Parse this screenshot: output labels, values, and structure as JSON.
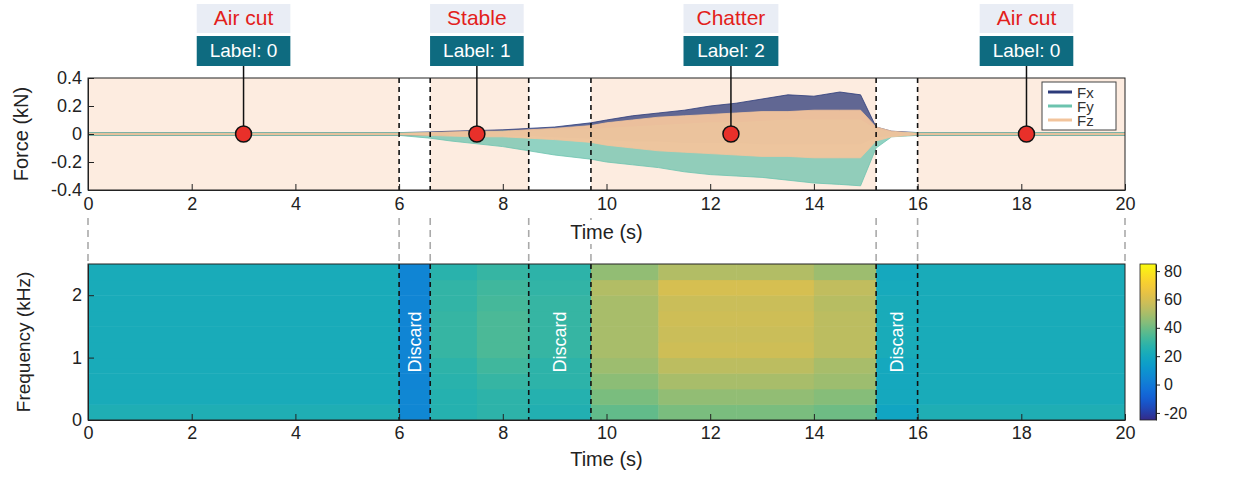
{
  "chart_data": [
    {
      "type": "area",
      "x": [
        0,
        6,
        6.6,
        7,
        7.5,
        8,
        8.5,
        9,
        9.7,
        10,
        10.5,
        11,
        11.5,
        12,
        12.5,
        13,
        13.5,
        14,
        14.5,
        14.9,
        15.2,
        15.5,
        16,
        20
      ],
      "series": [
        {
          "name": "Fx",
          "color": "#2c3b7a",
          "upper": [
            0.01,
            0.01,
            0.015,
            0.02,
            0.025,
            0.03,
            0.04,
            0.05,
            0.08,
            0.1,
            0.13,
            0.15,
            0.17,
            0.2,
            0.22,
            0.25,
            0.28,
            0.27,
            0.3,
            0.28,
            0.05,
            0.02,
            0.01,
            0.01
          ],
          "lower": [
            -0.01,
            -0.01,
            -0.01,
            -0.01,
            -0.01,
            -0.01,
            -0.01,
            -0.02,
            -0.03,
            -0.04,
            -0.05,
            -0.05,
            -0.06,
            -0.06,
            -0.06,
            -0.07,
            -0.07,
            -0.07,
            -0.07,
            -0.07,
            -0.02,
            -0.01,
            -0.01,
            -0.01
          ]
        },
        {
          "name": "Fy",
          "color": "#6cc3ae",
          "upper": [
            0.01,
            0.01,
            0.01,
            0.01,
            0.01,
            0.02,
            0.02,
            0.03,
            0.03,
            0.04,
            0.05,
            0.06,
            0.07,
            0.08,
            0.08,
            0.09,
            0.1,
            0.1,
            0.1,
            0.1,
            0.03,
            0.01,
            0.01,
            0.01
          ],
          "lower": [
            -0.01,
            -0.01,
            -0.03,
            -0.05,
            -0.07,
            -0.09,
            -0.12,
            -0.15,
            -0.18,
            -0.2,
            -0.22,
            -0.24,
            -0.27,
            -0.29,
            -0.3,
            -0.31,
            -0.33,
            -0.35,
            -0.36,
            -0.37,
            -0.1,
            -0.02,
            -0.01,
            -0.01
          ]
        },
        {
          "name": "Fz",
          "color": "#f2c49c",
          "upper": [
            0.005,
            0.005,
            0.01,
            0.015,
            0.02,
            0.02,
            0.03,
            0.04,
            0.06,
            0.08,
            0.1,
            0.12,
            0.13,
            0.14,
            0.15,
            0.16,
            0.16,
            0.17,
            0.17,
            0.17,
            0.05,
            0.02,
            0.005,
            0.005
          ],
          "lower": [
            -0.005,
            -0.005,
            -0.01,
            -0.015,
            -0.02,
            -0.02,
            -0.03,
            -0.04,
            -0.06,
            -0.08,
            -0.1,
            -0.12,
            -0.13,
            -0.14,
            -0.15,
            -0.16,
            -0.16,
            -0.17,
            -0.17,
            -0.17,
            -0.05,
            -0.02,
            -0.005,
            -0.005
          ]
        }
      ],
      "xlabel": "Time (s)",
      "ylabel": "Force (kN)",
      "xlim": [
        0,
        20
      ],
      "ylim": [
        -0.4,
        0.4
      ],
      "xticks": [
        0,
        2,
        4,
        6,
        8,
        10,
        12,
        14,
        16,
        18,
        20
      ],
      "yticks": [
        -0.4,
        -0.2,
        0,
        0.2,
        0.4
      ],
      "legend": "upper right",
      "regions": [
        {
          "start": 0,
          "end": 6
        },
        {
          "start": 6.6,
          "end": 8.5
        },
        {
          "start": 9.7,
          "end": 15.2
        },
        {
          "start": 16,
          "end": 20
        }
      ],
      "boundaries": [
        6,
        6.6,
        8.5,
        9.7,
        15.2,
        16
      ],
      "annotations": [
        {
          "x": 3,
          "y": 0,
          "title": "Air cut",
          "label": "Label: 0"
        },
        {
          "x": 7.5,
          "y": 0,
          "title": "Stable",
          "label": "Label: 1"
        },
        {
          "x": 12.4,
          "y": 0,
          "title": "Chatter",
          "label": "Label: 2"
        },
        {
          "x": 18.1,
          "y": 0,
          "title": "Air cut",
          "label": "Label: 0"
        }
      ]
    },
    {
      "type": "heatmap",
      "x_edges": [
        0,
        6,
        6.6,
        7.5,
        8.5,
        9.7,
        11,
        12.5,
        14,
        15.2,
        16,
        20
      ],
      "y_edges": [
        0,
        0.25,
        0.5,
        0.75,
        1,
        1.25,
        1.5,
        1.75,
        2,
        2.25,
        2.5
      ],
      "cells": [
        [
          24,
          5,
          26,
          28,
          25,
          38,
          42,
          42,
          40,
          18,
          24
        ],
        [
          22,
          5,
          26,
          28,
          26,
          42,
          46,
          46,
          44,
          20,
          22
        ],
        [
          22,
          4,
          27,
          30,
          28,
          45,
          50,
          50,
          48,
          20,
          22
        ],
        [
          22,
          4,
          28,
          32,
          28,
          48,
          54,
          54,
          50,
          20,
          22
        ],
        [
          22,
          4,
          30,
          34,
          30,
          50,
          58,
          58,
          54,
          22,
          22
        ],
        [
          22,
          4,
          30,
          34,
          30,
          50,
          57,
          57,
          54,
          22,
          22
        ],
        [
          22,
          4,
          30,
          34,
          30,
          50,
          58,
          58,
          54,
          22,
          22
        ],
        [
          22,
          4,
          29,
          33,
          30,
          50,
          57,
          57,
          53,
          22,
          22
        ],
        [
          22,
          4,
          29,
          32,
          29,
          52,
          60,
          60,
          55,
          21,
          22
        ],
        [
          22,
          4,
          27,
          30,
          28,
          46,
          52,
          52,
          48,
          20,
          22
        ]
      ],
      "xlabel": "Time (s)",
      "ylabel": "Frequency (kHz)",
      "xlim": [
        0,
        20
      ],
      "ylim": [
        0,
        2.5
      ],
      "xticks": [
        0,
        2,
        4,
        6,
        8,
        10,
        12,
        14,
        16,
        18,
        20
      ],
      "yticks": [
        0,
        1,
        2
      ],
      "colorbar": {
        "range": [
          -25,
          85
        ],
        "ticks": [
          -20,
          0,
          20,
          40,
          60,
          80
        ]
      },
      "boundaries": [
        6,
        6.6,
        8.5,
        9.7,
        15.2,
        16
      ],
      "discard": [
        {
          "start": 6,
          "end": 6.6,
          "label": "Discard"
        },
        {
          "start": 8.5,
          "end": 9.7,
          "label": "Discard"
        },
        {
          "start": 15.2,
          "end": 16,
          "label": "Discard"
        }
      ]
    }
  ]
}
